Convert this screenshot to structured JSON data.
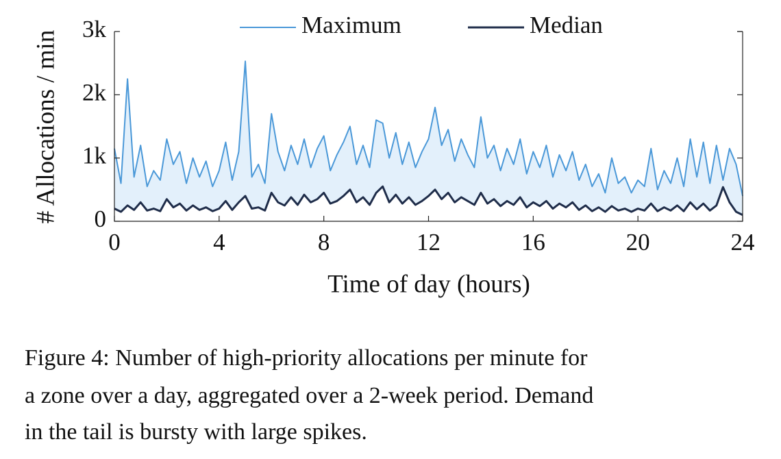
{
  "chart_data": {
    "type": "line",
    "xlabel": "Time of day (hours)",
    "ylabel": "# Allocations / min",
    "caption": [
      "Figure 4: Number of high-priority allocations per minute for",
      "a zone over a day, aggregated over a 2-week period. Demand",
      "in the tail is bursty with large spikes."
    ],
    "x": [
      0,
      0.25,
      0.5,
      0.75,
      1,
      1.25,
      1.5,
      1.75,
      2,
      2.25,
      2.5,
      2.75,
      3,
      3.25,
      3.5,
      3.75,
      4,
      4.25,
      4.5,
      4.75,
      5,
      5.25,
      5.5,
      5.75,
      6,
      6.25,
      6.5,
      6.75,
      7,
      7.25,
      7.5,
      7.75,
      8,
      8.25,
      8.5,
      8.75,
      9,
      9.25,
      9.5,
      9.75,
      10,
      10.25,
      10.5,
      10.75,
      11,
      11.25,
      11.5,
      11.75,
      12,
      12.25,
      12.5,
      12.75,
      13,
      13.25,
      13.5,
      13.75,
      14,
      14.25,
      14.5,
      14.75,
      15,
      15.25,
      15.5,
      15.75,
      16,
      16.25,
      16.5,
      16.75,
      17,
      17.25,
      17.5,
      17.75,
      18,
      18.25,
      18.5,
      18.75,
      19,
      19.25,
      19.5,
      19.75,
      20,
      20.25,
      20.5,
      20.75,
      21,
      21.25,
      21.5,
      21.75,
      22,
      22.25,
      22.5,
      22.75,
      23,
      23.25,
      23.5,
      23.75,
      24
    ],
    "series": [
      {
        "name": "Maximum",
        "color": "#4a98d8",
        "values": [
          1150,
          600,
          2250,
          700,
          1200,
          550,
          800,
          650,
          1300,
          900,
          1100,
          600,
          1000,
          700,
          950,
          550,
          800,
          1250,
          650,
          1100,
          2530,
          700,
          900,
          600,
          1700,
          1100,
          800,
          1200,
          900,
          1300,
          850,
          1150,
          1350,
          800,
          1050,
          1250,
          1500,
          900,
          1200,
          850,
          1600,
          1550,
          1000,
          1400,
          900,
          1250,
          850,
          1100,
          1300,
          1800,
          1200,
          1450,
          950,
          1300,
          1050,
          850,
          1650,
          1000,
          1200,
          800,
          1150,
          900,
          1300,
          750,
          1100,
          850,
          1200,
          700,
          1050,
          800,
          1100,
          650,
          900,
          550,
          750,
          450,
          1000,
          600,
          700,
          450,
          650,
          550,
          1150,
          500,
          800,
          600,
          1000,
          550,
          1300,
          700,
          1250,
          600,
          1200,
          650,
          1150,
          900,
          400
        ]
      },
      {
        "name": "Median",
        "color": "#1f2d4a",
        "values": [
          200,
          150,
          250,
          180,
          300,
          170,
          200,
          160,
          350,
          220,
          280,
          170,
          250,
          180,
          220,
          160,
          200,
          320,
          180,
          300,
          400,
          200,
          220,
          170,
          450,
          300,
          250,
          380,
          260,
          420,
          300,
          350,
          450,
          280,
          320,
          400,
          500,
          300,
          380,
          260,
          450,
          550,
          300,
          420,
          280,
          380,
          260,
          320,
          400,
          500,
          350,
          450,
          300,
          380,
          320,
          260,
          450,
          280,
          350,
          240,
          320,
          260,
          380,
          220,
          300,
          240,
          320,
          200,
          280,
          220,
          300,
          180,
          250,
          160,
          220,
          150,
          240,
          170,
          200,
          150,
          200,
          170,
          280,
          160,
          220,
          170,
          250,
          160,
          300,
          190,
          280,
          170,
          250,
          540,
          300,
          150,
          100
        ]
      }
    ],
    "fill_color": "#e3f0fb",
    "xlim": [
      0,
      24
    ],
    "xticks": [
      0,
      4,
      8,
      12,
      16,
      20,
      24
    ],
    "ylim": [
      0,
      3000
    ],
    "yticks": [
      0,
      {
        "value": 1000,
        "label": "1k"
      },
      {
        "value": 2000,
        "label": "2k"
      },
      {
        "value": 3000,
        "label": "3k"
      }
    ],
    "legend": "top"
  }
}
